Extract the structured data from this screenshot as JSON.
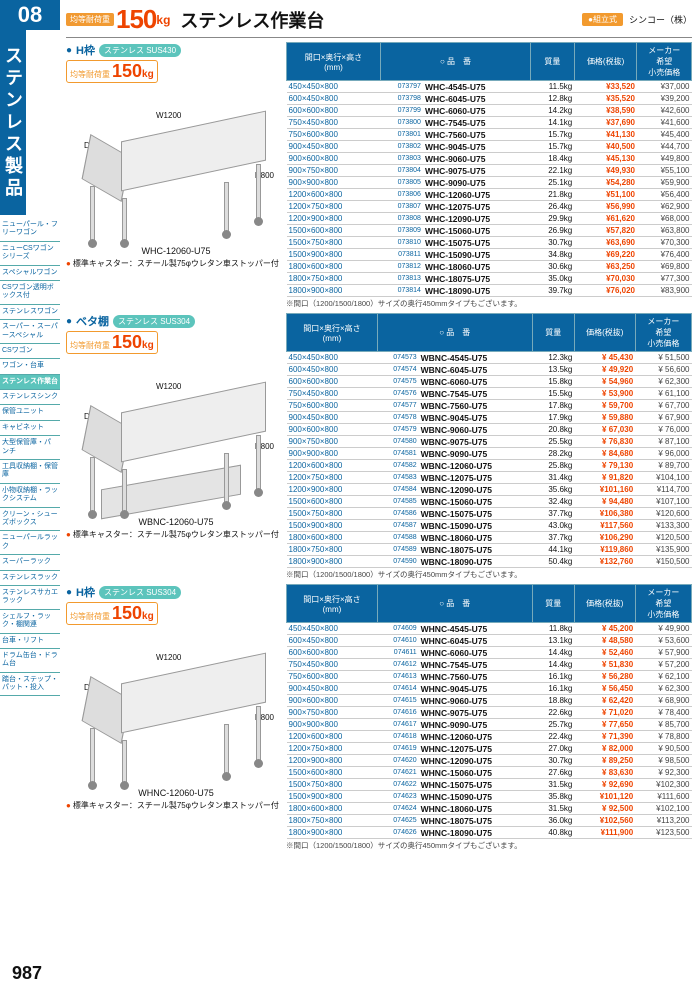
{
  "category_number": "08",
  "category_title": "ステンレス製品",
  "top": {
    "load_label": "均等耐荷重",
    "load_value": "150",
    "load_unit": "kg",
    "title": "ステンレス作業台",
    "assembly": "●組立式",
    "manufacturer": "シンコー（株）"
  },
  "page_number": "987",
  "sidenav": [
    "ニューパール・フリーワゴン",
    "ニューCSワゴンシリーズ",
    "スペシャルワゴン",
    "CSワゴン透明ボックス付",
    "ステンレスワゴン",
    "スーパー・スーパースペシャル",
    "CSワゴン",
    "ワゴン・台車",
    "ステンレス作業台",
    "ステンレスシンク",
    "保管ユニット",
    "キャビネット",
    "大型保管庫・パンチ",
    "工具収納棚・保管庫",
    "小物収納棚・ラックシステム",
    "クリーン・シューズボックス",
    "ニューパールラック",
    "スーパーラック",
    "ステンレスラック",
    "ステンレスサカエラック",
    "シェルフ・ラック・棚関連",
    "台車・リフト",
    "ドラム缶台・ドラム台",
    "踏台・ステップ・パット・投入"
  ],
  "sidenav_active": 8,
  "table_headers": {
    "dim": "間口×奥行×高さ\n(mm)",
    "model": "○ 品　番",
    "weight": "質量",
    "price": "価格(税抜)",
    "srp": "メーカー\n希望\n小売価格"
  },
  "caster_note": "標準キャスター：スチール製75φウレタン車ストッパー付",
  "table_note": "※間口（1200/1500/1800）サイズの奥行450mmタイプもございます。",
  "sections": [
    {
      "name": "H枠",
      "material": "ステンレス SUS430",
      "model": "WHC-12060-U75",
      "dimW": "W1200",
      "dimD": "D600",
      "dimH": "H800",
      "shelf": false,
      "rows": [
        {
          "d": "450×450×800",
          "c": "073797",
          "m": "WHC-4545-U75",
          "w": "11.5kg",
          "p": "¥33,520",
          "s": "¥37,000"
        },
        {
          "d": "600×450×800",
          "c": "073798",
          "m": "WHC-6045-U75",
          "w": "12.8kg",
          "p": "¥35,520",
          "s": "¥39,200"
        },
        {
          "d": "600×600×800",
          "c": "073799",
          "m": "WHC-6060-U75",
          "w": "14.2kg",
          "p": "¥38,590",
          "s": "¥42,600"
        },
        {
          "d": "750×450×800",
          "c": "073800",
          "m": "WHC-7545-U75",
          "w": "14.1kg",
          "p": "¥37,690",
          "s": "¥41,600"
        },
        {
          "d": "750×600×800",
          "c": "073801",
          "m": "WHC-7560-U75",
          "w": "15.7kg",
          "p": "¥41,130",
          "s": "¥45,400"
        },
        {
          "d": "900×450×800",
          "c": "073802",
          "m": "WHC-9045-U75",
          "w": "15.7kg",
          "p": "¥40,500",
          "s": "¥44,700"
        },
        {
          "d": "900×600×800",
          "c": "073803",
          "m": "WHC-9060-U75",
          "w": "18.4kg",
          "p": "¥45,130",
          "s": "¥49,800"
        },
        {
          "d": "900×750×800",
          "c": "073804",
          "m": "WHC-9075-U75",
          "w": "22.1kg",
          "p": "¥49,930",
          "s": "¥55,100"
        },
        {
          "d": "900×900×800",
          "c": "073805",
          "m": "WHC-9090-U75",
          "w": "25.1kg",
          "p": "¥54,280",
          "s": "¥59,900"
        },
        {
          "d": "1200×600×800",
          "c": "073806",
          "m": "WHC-12060-U75",
          "w": "21.8kg",
          "p": "¥51,100",
          "s": "¥56,400"
        },
        {
          "d": "1200×750×800",
          "c": "073807",
          "m": "WHC-12075-U75",
          "w": "26.4kg",
          "p": "¥56,990",
          "s": "¥62,900"
        },
        {
          "d": "1200×900×800",
          "c": "073808",
          "m": "WHC-12090-U75",
          "w": "29.9kg",
          "p": "¥61,620",
          "s": "¥68,000"
        },
        {
          "d": "1500×600×800",
          "c": "073809",
          "m": "WHC-15060-U75",
          "w": "26.9kg",
          "p": "¥57,820",
          "s": "¥63,800"
        },
        {
          "d": "1500×750×800",
          "c": "073810",
          "m": "WHC-15075-U75",
          "w": "30.7kg",
          "p": "¥63,690",
          "s": "¥70,300"
        },
        {
          "d": "1500×900×800",
          "c": "073811",
          "m": "WHC-15090-U75",
          "w": "34.8kg",
          "p": "¥69,220",
          "s": "¥76,400"
        },
        {
          "d": "1800×600×800",
          "c": "073812",
          "m": "WHC-18060-U75",
          "w": "30.6kg",
          "p": "¥63,250",
          "s": "¥69,800"
        },
        {
          "d": "1800×750×800",
          "c": "073813",
          "m": "WHC-18075-U75",
          "w": "35.0kg",
          "p": "¥70,030",
          "s": "¥77,300"
        },
        {
          "d": "1800×900×800",
          "c": "073814",
          "m": "WHC-18090-U75",
          "w": "39.7kg",
          "p": "¥76,020",
          "s": "¥83,900"
        }
      ]
    },
    {
      "name": "ベタ棚",
      "material": "ステンレス SUS304",
      "model": "WBNC-12060-U75",
      "dimW": "W1200",
      "dimD": "D600",
      "dimH": "H800",
      "shelf": true,
      "rows": [
        {
          "d": "450×450×800",
          "c": "074573",
          "m": "WBNC-4545-U75",
          "w": "12.3kg",
          "p": "¥ 45,430",
          "s": "¥ 51,500"
        },
        {
          "d": "600×450×800",
          "c": "074574",
          "m": "WBNC-6045-U75",
          "w": "13.5kg",
          "p": "¥ 49,920",
          "s": "¥ 56,600"
        },
        {
          "d": "600×600×800",
          "c": "074575",
          "m": "WBNC-6060-U75",
          "w": "15.8kg",
          "p": "¥ 54,960",
          "s": "¥ 62,300"
        },
        {
          "d": "750×450×800",
          "c": "074576",
          "m": "WBNC-7545-U75",
          "w": "15.5kg",
          "p": "¥ 53,900",
          "s": "¥ 61,100"
        },
        {
          "d": "750×600×800",
          "c": "074577",
          "m": "WBNC-7560-U75",
          "w": "17.8kg",
          "p": "¥ 59,700",
          "s": "¥ 67,700"
        },
        {
          "d": "900×450×800",
          "c": "074578",
          "m": "WBNC-9045-U75",
          "w": "17.9kg",
          "p": "¥ 59,880",
          "s": "¥ 67,900"
        },
        {
          "d": "900×600×800",
          "c": "074579",
          "m": "WBNC-9060-U75",
          "w": "20.8kg",
          "p": "¥ 67,030",
          "s": "¥ 76,000"
        },
        {
          "d": "900×750×800",
          "c": "074580",
          "m": "WBNC-9075-U75",
          "w": "25.5kg",
          "p": "¥ 76,830",
          "s": "¥ 87,100"
        },
        {
          "d": "900×900×800",
          "c": "074581",
          "m": "WBNC-9090-U75",
          "w": "28.2kg",
          "p": "¥ 84,680",
          "s": "¥ 96,000"
        },
        {
          "d": "1200×600×800",
          "c": "074582",
          "m": "WBNC-12060-U75",
          "w": "25.8kg",
          "p": "¥ 79,130",
          "s": "¥ 89,700"
        },
        {
          "d": "1200×750×800",
          "c": "074583",
          "m": "WBNC-12075-U75",
          "w": "31.4kg",
          "p": "¥ 91,820",
          "s": "¥104,100"
        },
        {
          "d": "1200×900×800",
          "c": "074584",
          "m": "WBNC-12090-U75",
          "w": "35.6kg",
          "p": "¥101,160",
          "s": "¥114,700"
        },
        {
          "d": "1500×600×800",
          "c": "074585",
          "m": "WBNC-15060-U75",
          "w": "32.4kg",
          "p": "¥ 94,480",
          "s": "¥107,100"
        },
        {
          "d": "1500×750×800",
          "c": "074586",
          "m": "WBNC-15075-U75",
          "w": "37.7kg",
          "p": "¥106,380",
          "s": "¥120,600"
        },
        {
          "d": "1500×900×800",
          "c": "074587",
          "m": "WBNC-15090-U75",
          "w": "43.0kg",
          "p": "¥117,560",
          "s": "¥133,300"
        },
        {
          "d": "1800×600×800",
          "c": "074588",
          "m": "WBNC-18060-U75",
          "w": "37.7kg",
          "p": "¥106,290",
          "s": "¥120,500"
        },
        {
          "d": "1800×750×800",
          "c": "074589",
          "m": "WBNC-18075-U75",
          "w": "44.1kg",
          "p": "¥119,860",
          "s": "¥135,900"
        },
        {
          "d": "1800×900×800",
          "c": "074590",
          "m": "WBNC-18090-U75",
          "w": "50.4kg",
          "p": "¥132,760",
          "s": "¥150,500"
        }
      ]
    },
    {
      "name": "H枠",
      "material": "ステンレス SUS304",
      "model": "WHNC-12060-U75",
      "dimW": "W1200",
      "dimD": "D600",
      "dimH": "H800",
      "shelf": false,
      "rows": [
        {
          "d": "450×450×800",
          "c": "074609",
          "m": "WHNC-4545-U75",
          "w": "11.8kg",
          "p": "¥ 45,200",
          "s": "¥ 49,900"
        },
        {
          "d": "600×450×800",
          "c": "074610",
          "m": "WHNC-6045-U75",
          "w": "13.1kg",
          "p": "¥ 48,580",
          "s": "¥ 53,600"
        },
        {
          "d": "600×600×800",
          "c": "074611",
          "m": "WHNC-6060-U75",
          "w": "14.4kg",
          "p": "¥ 52,460",
          "s": "¥ 57,900"
        },
        {
          "d": "750×450×800",
          "c": "074612",
          "m": "WHNC-7545-U75",
          "w": "14.4kg",
          "p": "¥ 51,830",
          "s": "¥ 57,200"
        },
        {
          "d": "750×600×800",
          "c": "074613",
          "m": "WHNC-7560-U75",
          "w": "16.1kg",
          "p": "¥ 56,280",
          "s": "¥ 62,100"
        },
        {
          "d": "900×450×800",
          "c": "074614",
          "m": "WHNC-9045-U75",
          "w": "16.1kg",
          "p": "¥ 56,450",
          "s": "¥ 62,300"
        },
        {
          "d": "900×600×800",
          "c": "074615",
          "m": "WHNC-9060-U75",
          "w": "18.8kg",
          "p": "¥ 62,420",
          "s": "¥ 68,900"
        },
        {
          "d": "900×750×800",
          "c": "074616",
          "m": "WHNC-9075-U75",
          "w": "22.6kg",
          "p": "¥ 71,020",
          "s": "¥ 78,400"
        },
        {
          "d": "900×900×800",
          "c": "074617",
          "m": "WHNC-9090-U75",
          "w": "25.7kg",
          "p": "¥ 77,650",
          "s": "¥ 85,700"
        },
        {
          "d": "1200×600×800",
          "c": "074618",
          "m": "WHNC-12060-U75",
          "w": "22.4kg",
          "p": "¥ 71,390",
          "s": "¥ 78,800"
        },
        {
          "d": "1200×750×800",
          "c": "074619",
          "m": "WHNC-12075-U75",
          "w": "27.0kg",
          "p": "¥ 82,000",
          "s": "¥ 90,500"
        },
        {
          "d": "1200×900×800",
          "c": "074620",
          "m": "WHNC-12090-U75",
          "w": "30.7kg",
          "p": "¥ 89,250",
          "s": "¥ 98,500"
        },
        {
          "d": "1500×600×800",
          "c": "074621",
          "m": "WHNC-15060-U75",
          "w": "27.6kg",
          "p": "¥ 83,630",
          "s": "¥ 92,300"
        },
        {
          "d": "1500×750×800",
          "c": "074622",
          "m": "WHNC-15075-U75",
          "w": "31.5kg",
          "p": "¥ 92,690",
          "s": "¥102,300"
        },
        {
          "d": "1500×900×800",
          "c": "074623",
          "m": "WHNC-15090-U75",
          "w": "35.8kg",
          "p": "¥101,120",
          "s": "¥111,600"
        },
        {
          "d": "1800×600×800",
          "c": "074624",
          "m": "WHNC-18060-U75",
          "w": "31.5kg",
          "p": "¥ 92,500",
          "s": "¥102,100"
        },
        {
          "d": "1800×750×800",
          "c": "074625",
          "m": "WHNC-18075-U75",
          "w": "36.0kg",
          "p": "¥102,560",
          "s": "¥113,200"
        },
        {
          "d": "1800×900×800",
          "c": "074626",
          "m": "WHNC-18090-U75",
          "w": "40.8kg",
          "p": "¥111,900",
          "s": "¥123,500"
        }
      ]
    }
  ],
  "colors": {
    "brand": "#0a64a0",
    "accent": "#5cc4bc",
    "orange": "#f29a2e",
    "price": "#e40012"
  }
}
